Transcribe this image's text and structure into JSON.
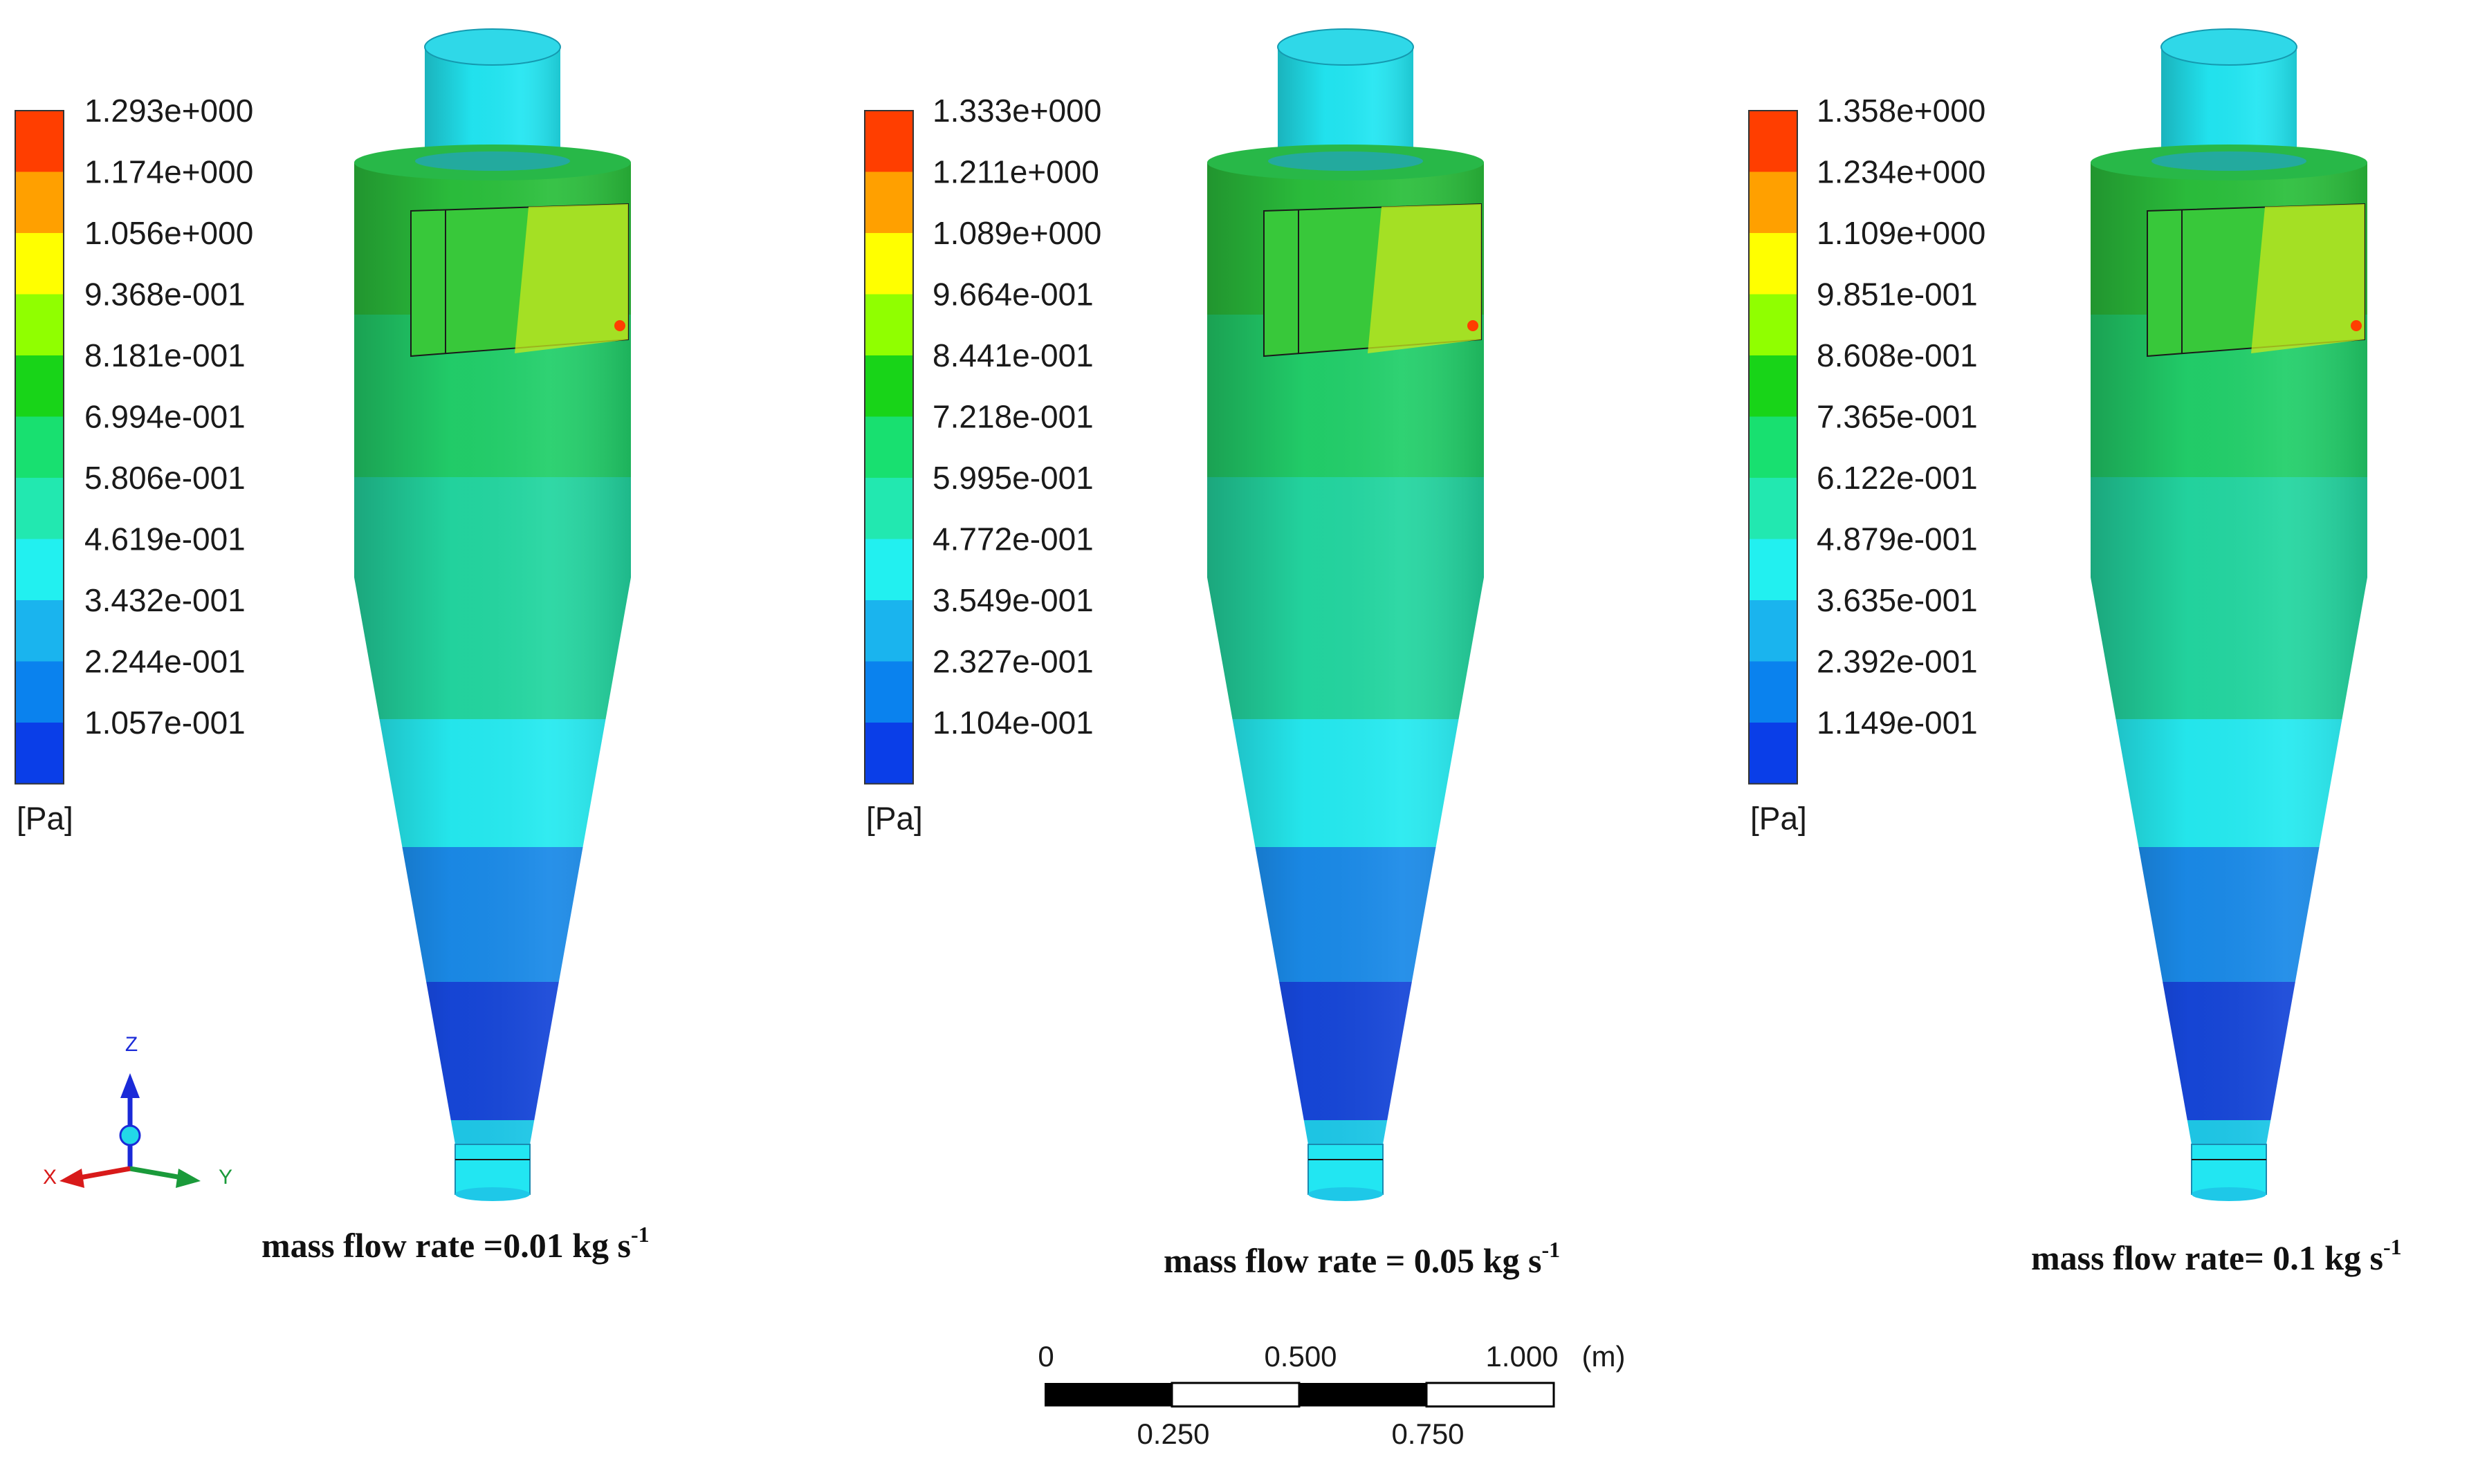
{
  "colors": {
    "legend": [
      "#ff3e00",
      "#ffa000",
      "#ffff00",
      "#90ff00",
      "#18d418",
      "#18e070",
      "#22e8b0",
      "#22f0f0",
      "#1ab4ee",
      "#0a82ee",
      "#0a3ee8"
    ],
    "body_top": "#2bbf3c",
    "body_mid": "#23d6a0",
    "body_low": "#25eaf0",
    "cone_low": "#1a8ae8",
    "cone_tip": "#1646d8",
    "pipe": "#22e6f2",
    "inlet_hot": "#c8e81e"
  },
  "panels": [
    {
      "legend_values": [
        "1.293e+000",
        "1.174e+000",
        "1.056e+000",
        "9.368e-001",
        "8.181e-001",
        "6.994e-001",
        "5.806e-001",
        "4.619e-001",
        "3.432e-001",
        "2.244e-001",
        "1.057e-001"
      ],
      "unit": "[Pa]",
      "caption": "mass flow rate =0.01  kg s",
      "caption_sup": "-1"
    },
    {
      "legend_values": [
        "1.333e+000",
        "1.211e+000",
        "1.089e+000",
        "9.664e-001",
        "8.441e-001",
        "7.218e-001",
        "5.995e-001",
        "4.772e-001",
        "3.549e-001",
        "2.327e-001",
        "1.104e-001"
      ],
      "unit": "[Pa]",
      "caption": "mass flow rate = 0.05  kg s",
      "caption_sup": "-1"
    },
    {
      "legend_values": [
        "1.358e+000",
        "1.234e+000",
        "1.109e+000",
        "9.851e-001",
        "8.608e-001",
        "7.365e-001",
        "6.122e-001",
        "4.879e-001",
        "3.635e-001",
        "2.392e-001",
        "1.149e-001"
      ],
      "unit": "[Pa]",
      "caption": "mass flow rate= 0.1 kg s",
      "caption_sup": "-1"
    }
  ],
  "axes": {
    "z": "Z",
    "x": "X",
    "y": "Y"
  },
  "scale_bar": {
    "top_labels": [
      "0",
      "0.500",
      "1.000"
    ],
    "unit": "(m)",
    "bottom_labels": [
      "0.250",
      "0.750"
    ]
  }
}
